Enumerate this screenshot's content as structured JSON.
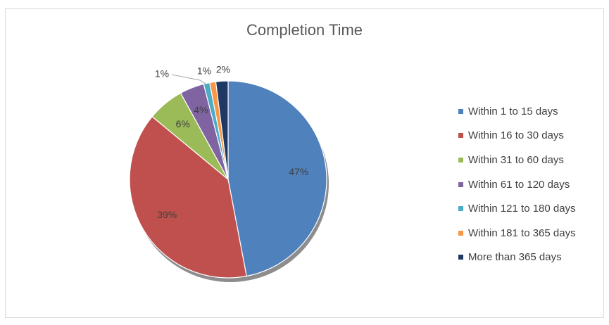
{
  "chart_data": {
    "type": "pie",
    "title": "Completion Time",
    "categories": [
      "Within 1 to 15 days",
      "Within 16 to 30 days",
      "Within 31 to 60 days",
      "Within 61 to 120 days",
      "Within 121 to 180 days",
      "Within 181 to 365 days",
      "More than 365 days"
    ],
    "values": [
      47,
      39,
      6,
      4,
      1,
      1,
      2
    ],
    "labels": [
      "47%",
      "39%",
      "6%",
      "4%",
      "1%",
      "1%",
      "2%"
    ],
    "colors": [
      "#4f81bd",
      "#c0504d",
      "#9bbb59",
      "#8064a2",
      "#4bacc6",
      "#f79646",
      "#1f3864"
    ],
    "legend_position": "right"
  }
}
